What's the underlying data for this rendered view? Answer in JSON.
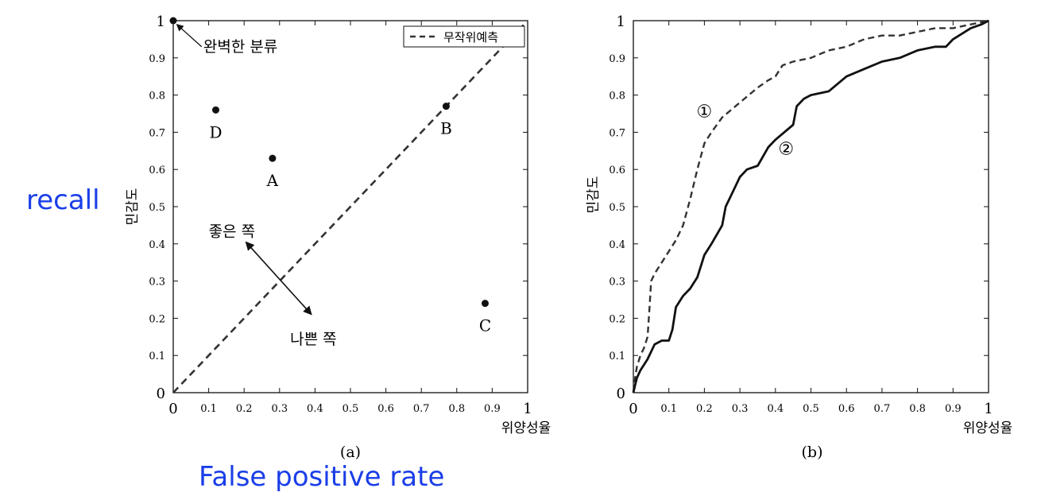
{
  "annotations": {
    "recall": "recall",
    "false_positive_rate": "False positive rate",
    "annotation_color": "#1a3ee8"
  },
  "chart_data": [
    {
      "type": "scatter",
      "caption": "(a)",
      "xlabel": "위양성율",
      "ylabel": "민감도",
      "xlim": [
        0,
        1
      ],
      "ylim": [
        0,
        1
      ],
      "xticks": [
        "0",
        "0.1",
        "0.2",
        "0.3",
        "0.4",
        "0.5",
        "0.6",
        "0.7",
        "0.8",
        "0.9",
        "1"
      ],
      "yticks": [
        "0",
        "0.1",
        "0.2",
        "0.3",
        "0.4",
        "0.5",
        "0.6",
        "0.7",
        "0.8",
        "0.9",
        "1"
      ],
      "legend": {
        "position": "top-right",
        "entries": [
          "무작위예측"
        ]
      },
      "reference_line": {
        "name": "무작위예측",
        "style": "dashed",
        "x": [
          0,
          1
        ],
        "y": [
          0,
          1
        ]
      },
      "points": [
        {
          "label": "",
          "x": 0.0,
          "y": 1.0
        },
        {
          "label": "D",
          "x": 0.12,
          "y": 0.76
        },
        {
          "label": "A",
          "x": 0.28,
          "y": 0.63
        },
        {
          "label": "B",
          "x": 0.77,
          "y": 0.77
        },
        {
          "label": "C",
          "x": 0.88,
          "y": 0.24
        }
      ],
      "text_annotations": {
        "perfect": "완벽한 분류",
        "better": "좋은 쪽",
        "worse": "나쁜 쪽"
      }
    },
    {
      "type": "line",
      "caption": "(b)",
      "xlabel": "위양성율",
      "ylabel": "민감도",
      "xlim": [
        0,
        1
      ],
      "ylim": [
        0,
        1
      ],
      "xticks": [
        "0",
        "0.1",
        "0.2",
        "0.3",
        "0.4",
        "0.5",
        "0.6",
        "0.7",
        "0.8",
        "0.9",
        "1"
      ],
      "yticks": [
        "0",
        "0.1",
        "0.2",
        "0.3",
        "0.4",
        "0.5",
        "0.6",
        "0.7",
        "0.8",
        "0.9",
        "1"
      ],
      "series": [
        {
          "name": "①",
          "style": "dashed",
          "x": [
            0,
            0.005,
            0.01,
            0.02,
            0.03,
            0.04,
            0.045,
            0.05,
            0.06,
            0.08,
            0.1,
            0.12,
            0.14,
            0.16,
            0.18,
            0.2,
            0.22,
            0.25,
            0.3,
            0.35,
            0.38,
            0.4,
            0.42,
            0.45,
            0.5,
            0.55,
            0.6,
            0.65,
            0.7,
            0.75,
            0.8,
            0.85,
            0.9,
            0.95,
            1.0
          ],
          "y": [
            0,
            0.04,
            0.07,
            0.1,
            0.12,
            0.15,
            0.22,
            0.3,
            0.32,
            0.35,
            0.38,
            0.41,
            0.45,
            0.52,
            0.6,
            0.67,
            0.7,
            0.74,
            0.78,
            0.82,
            0.84,
            0.85,
            0.88,
            0.89,
            0.9,
            0.92,
            0.93,
            0.95,
            0.96,
            0.96,
            0.97,
            0.98,
            0.98,
            0.99,
            1.0
          ]
        },
        {
          "name": "②",
          "style": "solid",
          "x": [
            0,
            0.005,
            0.01,
            0.02,
            0.04,
            0.06,
            0.08,
            0.1,
            0.11,
            0.12,
            0.14,
            0.16,
            0.18,
            0.2,
            0.22,
            0.25,
            0.26,
            0.28,
            0.3,
            0.32,
            0.35,
            0.38,
            0.4,
            0.45,
            0.46,
            0.48,
            0.5,
            0.55,
            0.6,
            0.65,
            0.7,
            0.75,
            0.8,
            0.85,
            0.88,
            0.9,
            0.95,
            0.98,
            1.0
          ],
          "y": [
            0,
            0.02,
            0.04,
            0.06,
            0.09,
            0.13,
            0.14,
            0.14,
            0.17,
            0.23,
            0.26,
            0.28,
            0.31,
            0.37,
            0.4,
            0.45,
            0.5,
            0.54,
            0.58,
            0.6,
            0.61,
            0.66,
            0.68,
            0.72,
            0.77,
            0.79,
            0.8,
            0.81,
            0.85,
            0.87,
            0.89,
            0.9,
            0.92,
            0.93,
            0.93,
            0.95,
            0.98,
            0.99,
            1.0
          ]
        }
      ]
    }
  ]
}
